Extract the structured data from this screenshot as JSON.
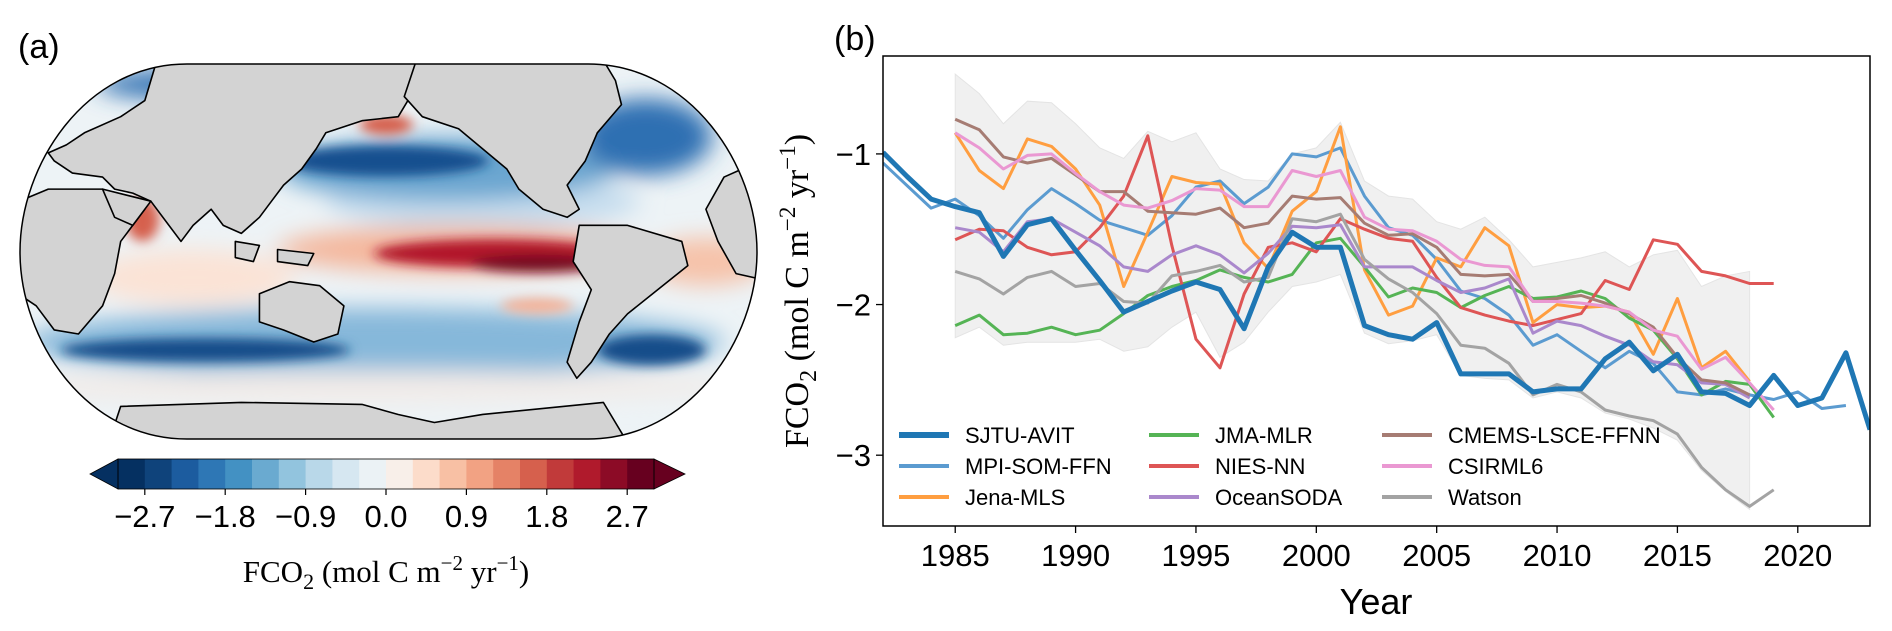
{
  "panel_a": {
    "label": "(a)",
    "chart_data": {
      "type": "map",
      "projection": "Robinson (Pacific-centred)",
      "colormap": "RdBu_r",
      "levels_range": [
        -3.0,
        3.0
      ],
      "level_step": 0.3,
      "extend": "both",
      "colorbar_ticks": [
        "−2.7",
        "−1.8",
        "−0.9",
        "0.0",
        "0.9",
        "1.8",
        "2.7"
      ],
      "colorbar_tick_values": [
        -2.7,
        -1.8,
        -0.9,
        0.0,
        0.9,
        1.8,
        2.7
      ],
      "colorbar_colors": [
        "#053061",
        "#0f437b",
        "#1c5c9f",
        "#2e77b5",
        "#4391c3",
        "#6aaad0",
        "#92c4de",
        "#b9d8e9",
        "#d6e7f1",
        "#ebf2f5",
        "#f8efe9",
        "#fcdcca",
        "#f8c0a4",
        "#f2a283",
        "#e58266",
        "#d6604d",
        "#c13a3a",
        "#b01a2c",
        "#8c0b26",
        "#67001f"
      ],
      "colorbar_label_parts": [
        "FCO",
        "2",
        " (mol C m",
        "−2",
        " yr",
        "−1",
        ")"
      ],
      "land_color": "#d3d3d3"
    }
  },
  "panel_b": {
    "label": "(b)",
    "chart_data": {
      "type": "line",
      "xlabel": "Year",
      "ylabel_parts": [
        "FCO",
        "2",
        " (mol C m",
        "−2",
        " yr",
        "−1",
        ")"
      ],
      "xlim": [
        1982,
        2023
      ],
      "ylim": [
        -3.47,
        -0.35
      ],
      "xticks": [
        1985,
        1990,
        1995,
        2000,
        2005,
        2010,
        2015,
        2020
      ],
      "yticks": [
        -1,
        -2,
        -3
      ],
      "ytick_labels": [
        "−1",
        "−2",
        "−3"
      ],
      "grid": false,
      "legend_placement": "bottom-left",
      "band": {
        "color": "#f0f0f0",
        "start_year": 1985,
        "upper": [
          -0.47,
          -0.6,
          -0.8,
          -0.65,
          -0.66,
          -0.8,
          -0.96,
          -1.03,
          -0.85,
          -0.92,
          -0.86,
          -1.1,
          -1.17,
          -1.18,
          -1.0,
          -0.96,
          -0.79,
          -1.18,
          -1.28,
          -1.3,
          -1.45,
          -1.5,
          -1.42,
          -1.57,
          -1.75,
          -1.72,
          -1.69,
          -1.65,
          -1.75,
          -1.67,
          -1.64,
          -1.88,
          -1.81,
          -1.78
        ],
        "lower": [
          -2.22,
          -2.15,
          -2.27,
          -2.25,
          -2.25,
          -2.25,
          -2.23,
          -2.31,
          -2.28,
          -2.15,
          -2.05,
          -2.35,
          -2.25,
          -2.05,
          -1.88,
          -1.85,
          -1.8,
          -2.19,
          -2.26,
          -2.24,
          -2.2,
          -2.47,
          -2.49,
          -2.5,
          -2.62,
          -2.58,
          -2.62,
          -2.72,
          -2.76,
          -2.82,
          -2.9,
          -3.1,
          -3.24,
          -3.36
        ]
      },
      "series": [
        {
          "name": "SJTU-AVIT",
          "color": "#1f77b4",
          "emphasis": "thick",
          "start_year": 1982,
          "values": [
            -0.99,
            -1.15,
            -1.3,
            -1.35,
            -1.39,
            -1.68,
            -1.47,
            -1.43,
            -1.64,
            -1.84,
            -2.05,
            -1.98,
            -1.91,
            -1.85,
            -1.9,
            -2.16,
            -1.75,
            -1.52,
            -1.62,
            -1.62,
            -2.14,
            -2.2,
            -2.23,
            -2.12,
            -2.46,
            -2.46,
            -2.46,
            -2.58,
            -2.56,
            -2.56,
            -2.36,
            -2.25,
            -2.44,
            -2.33,
            -2.58,
            -2.59,
            -2.67,
            -2.47,
            -2.67,
            -2.62,
            -2.32,
            -2.83
          ]
        },
        {
          "name": "MPI-SOM-FFN",
          "color": "#5b9bd0",
          "start_year": 1982,
          "values": [
            -1.06,
            -1.21,
            -1.36,
            -1.3,
            -1.41,
            -1.56,
            -1.37,
            -1.23,
            -1.33,
            -1.44,
            -1.49,
            -1.54,
            -1.41,
            -1.22,
            -1.18,
            -1.33,
            -1.22,
            -1.0,
            -1.02,
            -0.96,
            -1.28,
            -1.49,
            -1.54,
            -1.7,
            -1.91,
            -1.96,
            -2.07,
            -2.27,
            -2.2,
            -2.31,
            -2.42,
            -2.31,
            -2.39,
            -2.58,
            -2.6,
            -2.56,
            -2.6,
            -2.63,
            -2.58,
            -2.69,
            -2.67
          ]
        },
        {
          "name": "Jena-MLS",
          "color": "#ff9e40",
          "start_year": 1985,
          "values": [
            -0.86,
            -1.11,
            -1.23,
            -0.9,
            -0.95,
            -1.1,
            -1.34,
            -1.88,
            -1.52,
            -1.15,
            -1.19,
            -1.2,
            -1.59,
            -1.76,
            -1.38,
            -1.25,
            -0.82,
            -1.77,
            -2.07,
            -2.01,
            -1.69,
            -1.75,
            -1.49,
            -1.61,
            -2.12,
            -2.0,
            -2.02,
            -2.01,
            -2.05,
            -2.33,
            -1.96,
            -2.42,
            -2.31,
            -2.51
          ]
        },
        {
          "name": "JMA-MLR",
          "color": "#55b455",
          "start_year": 1985,
          "values": [
            -2.14,
            -2.07,
            -2.2,
            -2.19,
            -2.15,
            -2.2,
            -2.17,
            -2.06,
            -1.94,
            -1.88,
            -1.84,
            -1.77,
            -1.82,
            -1.85,
            -1.8,
            -1.59,
            -1.56,
            -1.75,
            -1.95,
            -1.89,
            -1.92,
            -2.02,
            -1.94,
            -1.88,
            -1.96,
            -1.95,
            -1.91,
            -1.96,
            -2.09,
            -2.17,
            -2.36,
            -2.6,
            -2.51,
            -2.53,
            -2.75
          ]
        },
        {
          "name": "NIES-NN",
          "color": "#de5555",
          "start_year": 1985,
          "values": [
            -1.57,
            -1.5,
            -1.51,
            -1.62,
            -1.67,
            -1.65,
            -1.49,
            -1.28,
            -0.88,
            -1.61,
            -2.23,
            -2.42,
            -1.93,
            -1.62,
            -1.59,
            -1.65,
            -1.43,
            -1.5,
            -1.56,
            -1.58,
            -1.82,
            -2.02,
            -2.07,
            -2.11,
            -2.14,
            -2.1,
            -2.06,
            -1.84,
            -1.9,
            -1.57,
            -1.6,
            -1.78,
            -1.81,
            -1.86,
            -1.86
          ]
        },
        {
          "name": "OceanSODA",
          "color": "#aa88cc",
          "start_year": 1985,
          "values": [
            -1.49,
            -1.52,
            -1.65,
            -1.45,
            -1.43,
            -1.52,
            -1.61,
            -1.75,
            -1.78,
            -1.67,
            -1.61,
            -1.67,
            -1.79,
            -1.66,
            -1.48,
            -1.49,
            -1.47,
            -1.75,
            -1.75,
            -1.75,
            -1.84,
            -1.92,
            -1.89,
            -1.83,
            -2.19,
            -2.11,
            -2.14,
            -2.21,
            -2.27,
            -2.38,
            -2.4,
            -2.52,
            -2.53,
            -2.62
          ]
        },
        {
          "name": "CMEMS-LSCE-FFNN",
          "color": "#a67c73",
          "start_year": 1985,
          "values": [
            -0.77,
            -0.84,
            -1.02,
            -1.06,
            -1.03,
            -1.14,
            -1.25,
            -1.25,
            -1.38,
            -1.39,
            -1.4,
            -1.36,
            -1.49,
            -1.46,
            -1.28,
            -1.3,
            -1.29,
            -1.46,
            -1.54,
            -1.53,
            -1.62,
            -1.8,
            -1.81,
            -1.8,
            -1.98,
            -1.96,
            -1.94,
            -1.99,
            -2.06,
            -2.15,
            -2.35,
            -2.5,
            -2.52,
            -2.6
          ]
        },
        {
          "name": "CSIRML6",
          "color": "#ea98d2",
          "start_year": 1985,
          "values": [
            -0.86,
            -0.96,
            -1.1,
            -1.01,
            -1.0,
            -1.13,
            -1.25,
            -1.34,
            -1.36,
            -1.31,
            -1.23,
            -1.24,
            -1.35,
            -1.35,
            -1.11,
            -1.15,
            -1.11,
            -1.42,
            -1.5,
            -1.51,
            -1.58,
            -1.7,
            -1.74,
            -1.75,
            -1.98,
            -1.98,
            -1.99,
            -2.01,
            -2.05,
            -2.17,
            -2.21,
            -2.43,
            -2.35,
            -2.52,
            -2.7
          ]
        },
        {
          "name": "Watson",
          "color": "#a3a3a3",
          "start_year": 1985,
          "values": [
            -1.78,
            -1.83,
            -1.93,
            -1.82,
            -1.78,
            -1.88,
            -1.86,
            -1.98,
            -1.99,
            -1.81,
            -1.78,
            -1.74,
            -1.85,
            -1.82,
            -1.43,
            -1.45,
            -1.4,
            -1.7,
            -1.83,
            -1.92,
            -2.06,
            -2.27,
            -2.29,
            -2.39,
            -2.6,
            -2.53,
            -2.58,
            -2.7,
            -2.74,
            -2.77,
            -2.86,
            -3.08,
            -3.23,
            -3.34,
            -3.23
          ]
        }
      ]
    }
  }
}
